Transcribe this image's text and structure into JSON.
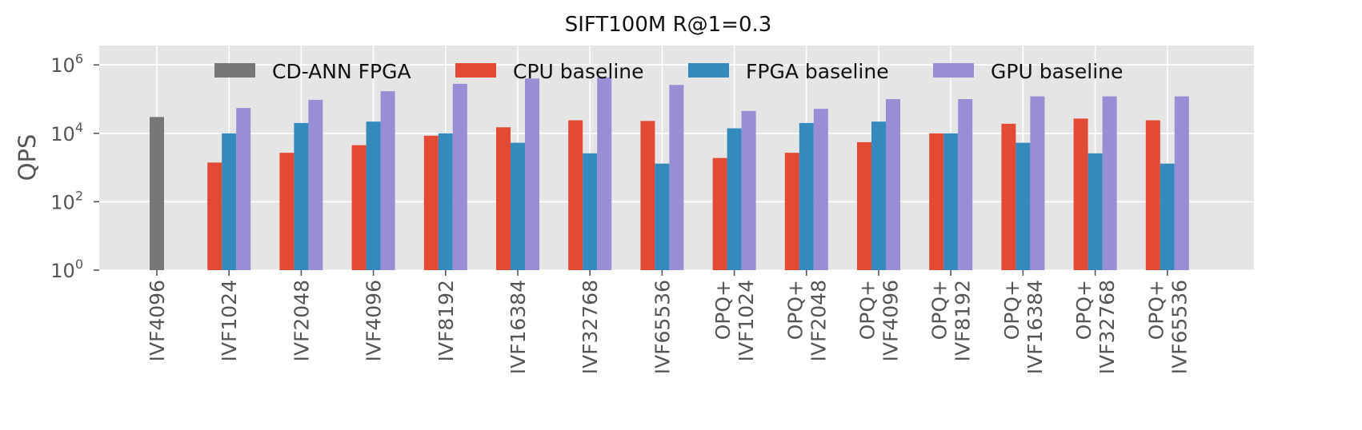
{
  "chart_data": {
    "type": "bar",
    "title": "SIFT100M R@1=0.3",
    "ylabel": "QPS",
    "xlabel": "",
    "yscale": "log",
    "ylim": [
      1,
      3000000
    ],
    "yticks": [
      {
        "value": 1,
        "base": "10",
        "exp": "0"
      },
      {
        "value": 100,
        "base": "10",
        "exp": "2"
      },
      {
        "value": 10000,
        "base": "10",
        "exp": "4"
      },
      {
        "value": 1000000,
        "base": "10",
        "exp": "6"
      }
    ],
    "grid": true,
    "legend_position": "top-center",
    "categories": [
      [
        "IVF4096"
      ],
      [
        "IVF1024"
      ],
      [
        "IVF2048"
      ],
      [
        "IVF4096"
      ],
      [
        "IVF8192"
      ],
      [
        "IVF16384"
      ],
      [
        "IVF32768"
      ],
      [
        "IVF65536"
      ],
      [
        "OPQ+",
        "IVF1024"
      ],
      [
        "OPQ+",
        "IVF2048"
      ],
      [
        "OPQ+",
        "IVF4096"
      ],
      [
        "OPQ+",
        "IVF8192"
      ],
      [
        "OPQ+",
        "IVF16384"
      ],
      [
        "OPQ+",
        "IVF32768"
      ],
      [
        "OPQ+",
        "IVF65536"
      ]
    ],
    "series": [
      {
        "name": "CD-ANN FPGA",
        "color": "#777777",
        "values": [
          30000,
          null,
          null,
          null,
          null,
          null,
          null,
          null,
          null,
          null,
          null,
          null,
          null,
          null,
          null
        ]
      },
      {
        "name": "CPU baseline",
        "color": "#E24A33",
        "values": [
          null,
          1400,
          2700,
          4500,
          8500,
          15000,
          24000,
          23000,
          1900,
          2700,
          5500,
          10000,
          19000,
          27000,
          24000
        ]
      },
      {
        "name": "FPGA baseline",
        "color": "#348ABD",
        "values": [
          null,
          10000,
          20000,
          22000,
          10000,
          5300,
          2600,
          1300,
          14000,
          20000,
          22000,
          10000,
          5300,
          2600,
          1300
        ]
      },
      {
        "name": "GPU baseline",
        "color": "#988ED5",
        "values": [
          null,
          55000,
          95000,
          170000,
          280000,
          400000,
          430000,
          260000,
          45000,
          52000,
          100000,
          100000,
          120000,
          120000,
          120000
        ]
      }
    ]
  }
}
